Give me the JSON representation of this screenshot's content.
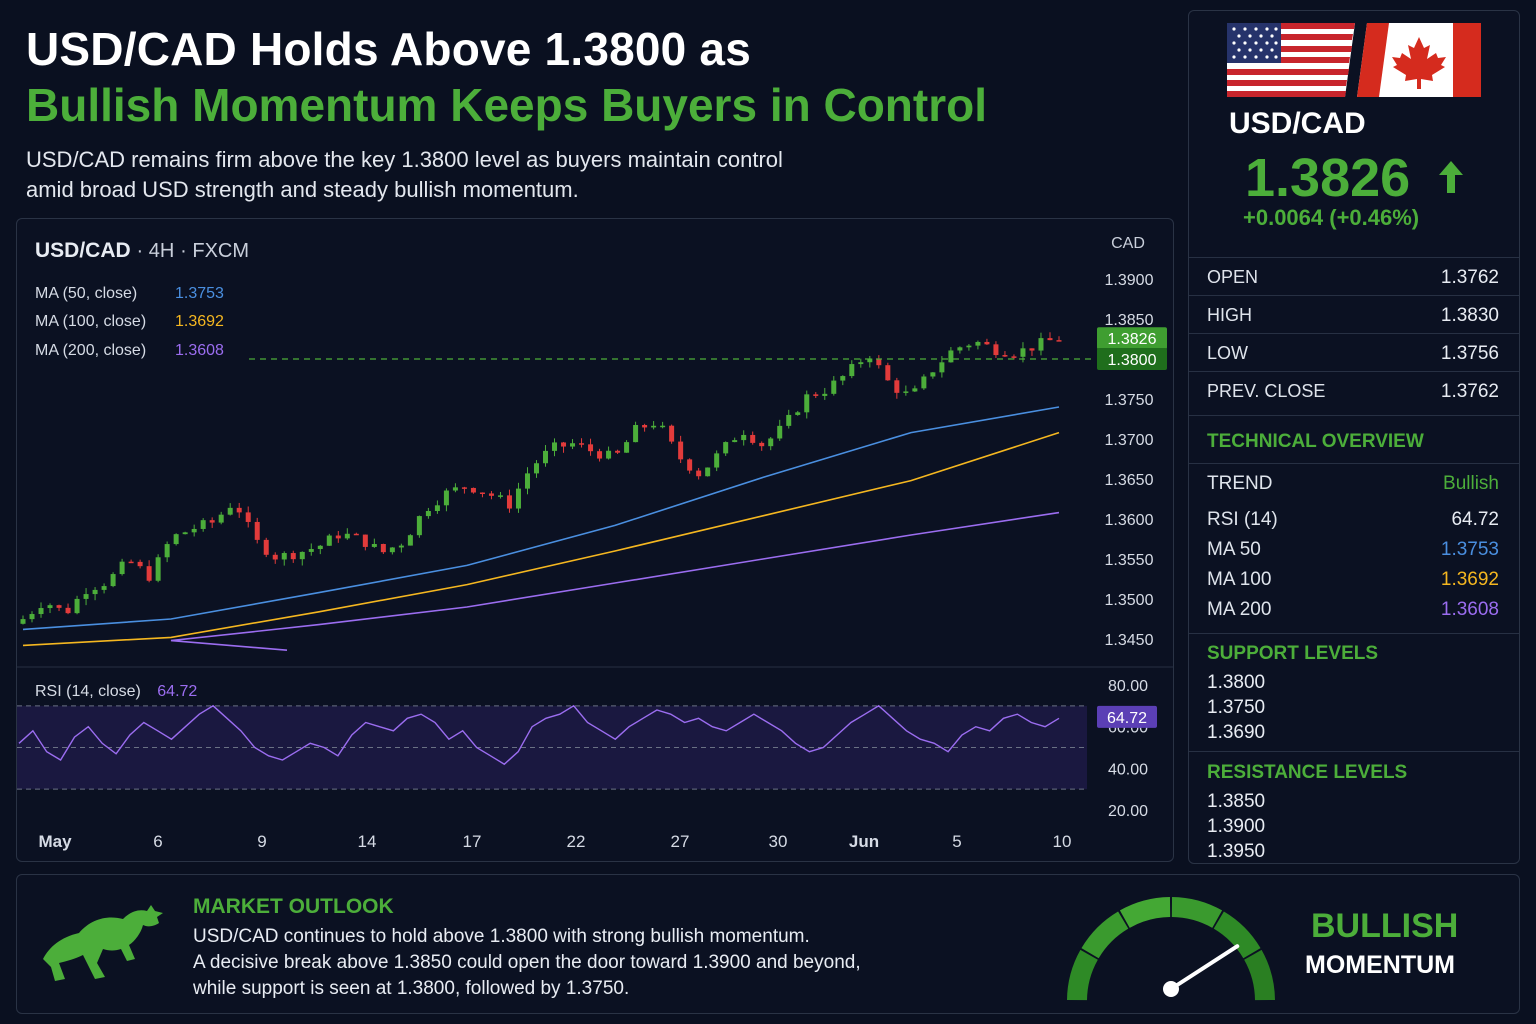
{
  "headline": {
    "line1": "USD/CAD Holds Above 1.3800 as",
    "line2": "Bullish Momentum Keeps Buyers in Control",
    "sub1": "USD/CAD remains firm above the key 1.3800 level as buyers maintain control",
    "sub2": "amid broad USD strength and steady bullish momentum."
  },
  "colors": {
    "green": "#4cae3a",
    "red": "#e23b3b",
    "ma50": "#4a8fe0",
    "ma100": "#f5b720",
    "ma200": "#9b6df0",
    "rsi": "#9b6df0",
    "background": "#0a1020"
  },
  "chart_data": {
    "type": "candlestick",
    "symbol": "USD/CAD",
    "timeframe": "4H",
    "source": "FXCM",
    "unit": "CAD",
    "y_ticks": [
      "1.3900",
      "1.3850",
      "1.3800",
      "1.3750",
      "1.3700",
      "1.3650",
      "1.3600",
      "1.3550",
      "1.3500",
      "1.3450"
    ],
    "ylim": [
      1.3425,
      1.3925
    ],
    "x_ticks": [
      "May",
      "6",
      "9",
      "14",
      "17",
      "22",
      "27",
      "30",
      "Jun",
      "5",
      "10"
    ],
    "current_price_label": "1.3826",
    "current_price": 1.3826,
    "key_level_label": "1.3800",
    "key_level": 1.38,
    "grid": false,
    "close_path": [
      1.3475,
      1.3498,
      1.3482,
      1.3513,
      1.3522,
      1.3548,
      1.3528,
      1.3576,
      1.3588,
      1.3596,
      1.3623,
      1.3572,
      1.3552,
      1.3558,
      1.3566,
      1.3582,
      1.3574,
      1.3558,
      1.3572,
      1.3612,
      1.3632,
      1.3642,
      1.3632,
      1.3618,
      1.3664,
      1.3688,
      1.3694,
      1.3684,
      1.3676,
      1.3712,
      1.3722,
      1.3678,
      1.3656,
      1.3684,
      1.3712,
      1.3692,
      1.3716,
      1.3752,
      1.3762,
      1.3782,
      1.3808,
      1.3768,
      1.3752,
      1.3786,
      1.3812,
      1.3822,
      1.3812,
      1.3808,
      1.3818,
      1.3826
    ],
    "ma_series": [
      {
        "name": "MA (50, close)",
        "value": 1.3753,
        "points": [
          [
            0,
            1.3462
          ],
          [
            10,
            1.3475
          ],
          [
            20,
            1.3508
          ],
          [
            30,
            1.3542
          ],
          [
            40,
            1.3592
          ],
          [
            50,
            1.3652
          ],
          [
            60,
            1.3708
          ],
          [
            70,
            1.374
          ]
        ]
      },
      {
        "name": "MA (100, close)",
        "value": 1.3692,
        "points": [
          [
            0,
            1.3442
          ],
          [
            10,
            1.3452
          ],
          [
            20,
            1.3484
          ],
          [
            30,
            1.3518
          ],
          [
            40,
            1.356
          ],
          [
            50,
            1.3604
          ],
          [
            60,
            1.3648
          ],
          [
            70,
            1.3708
          ]
        ]
      },
      {
        "name": "MA (200, close)",
        "value": 1.3608,
        "points": [
          [
            0,
            1.3438
          ],
          [
            10,
            1.3448
          ],
          [
            20,
            1.3468
          ],
          [
            30,
            1.349
          ],
          [
            40,
            1.352
          ],
          [
            50,
            1.355
          ],
          [
            60,
            1.358
          ],
          [
            70,
            1.3608
          ]
        ]
      }
    ],
    "rsi": {
      "name": "RSI (14, close)",
      "value": 64.72,
      "value_label": "64.72",
      "ticks": [
        "80.00",
        "60.00",
        "40.00",
        "20.00"
      ],
      "ylim": [
        20,
        80
      ],
      "levels": [
        70,
        50,
        30
      ],
      "values": [
        52,
        58,
        48,
        44,
        55,
        60,
        52,
        47,
        56,
        62,
        58,
        54,
        60,
        66,
        70,
        64,
        58,
        50,
        46,
        44,
        48,
        52,
        50,
        46,
        56,
        62,
        60,
        58,
        64,
        66,
        62,
        54,
        58,
        50,
        46,
        42,
        48,
        60,
        64,
        66,
        70,
        62,
        58,
        54,
        60,
        64,
        68,
        66,
        62,
        64,
        60,
        58,
        62,
        66,
        62,
        58,
        52,
        48,
        50,
        56,
        62,
        66,
        70,
        64,
        58,
        54,
        52,
        48,
        56,
        60,
        58,
        64,
        66,
        62,
        60,
        64
      ]
    }
  },
  "legend": {
    "ma50_label": "MA (50, close)",
    "ma50_value": "1.3753",
    "ma100_label": "MA (100, close)",
    "ma100_value": "1.3692",
    "ma200_label": "MA (200, close)",
    "ma200_value": "1.3608"
  },
  "quote": {
    "pair": "USD/CAD",
    "price": "1.3826",
    "change": "+0.0064  (+0.46%)",
    "rows": [
      {
        "label": "OPEN",
        "value": "1.3762"
      },
      {
        "label": "HIGH",
        "value": "1.3830"
      },
      {
        "label": "LOW",
        "value": "1.3756"
      },
      {
        "label": "PREV. CLOSE",
        "value": "1.3762"
      }
    ]
  },
  "technical": {
    "title": "TECHNICAL OVERVIEW",
    "trend_label": "TREND",
    "trend_value": "Bullish",
    "rsi_label": "RSI (14)",
    "rsi_value": "64.72",
    "ma50_label": "MA 50",
    "ma50_value": "1.3753",
    "ma100_label": "MA 100",
    "ma100_value": "1.3692",
    "ma200_label": "MA 200",
    "ma200_value": "1.3608"
  },
  "support": {
    "title": "SUPPORT LEVELS",
    "levels": [
      "1.3800",
      "1.3750",
      "1.3690"
    ]
  },
  "resistance": {
    "title": "RESISTANCE LEVELS",
    "levels": [
      "1.3850",
      "1.3900",
      "1.3950"
    ]
  },
  "outlook": {
    "title": "MARKET OUTLOOK",
    "line1": "USD/CAD continues to hold above 1.3800 with strong bullish momentum.",
    "line2": "A decisive break above 1.3850 could open the door toward 1.3900 and beyond,",
    "line3": "while support is seen at 1.3800, followed by 1.3750.",
    "gauge_label1": "BULLISH",
    "gauge_label2": "MOMENTUM",
    "gauge_level": 0.78
  },
  "icons": [
    "us-flag-icon",
    "canada-flag-icon",
    "up-arrow-icon",
    "bull-icon",
    "gauge-icon"
  ]
}
